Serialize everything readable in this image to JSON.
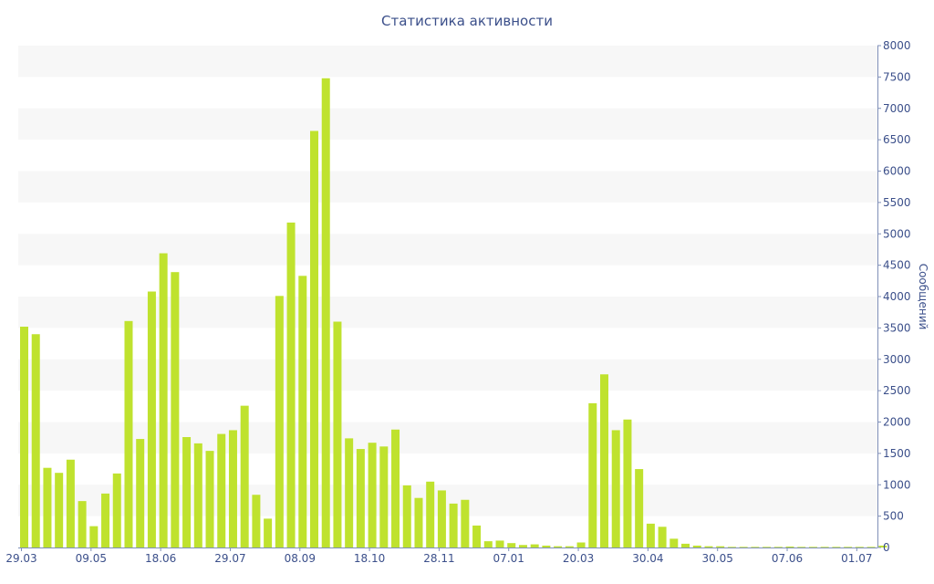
{
  "chart_data": {
    "type": "bar",
    "title": "Статистика активности",
    "xlabel": "",
    "ylabel": "Сообщений",
    "ylim": [
      0,
      8000
    ],
    "y_ticks": [
      0,
      500,
      1000,
      1500,
      2000,
      2500,
      3000,
      3500,
      4000,
      4500,
      5000,
      5500,
      6000,
      6500,
      7000,
      7500,
      8000
    ],
    "y_axis_side": "right",
    "grid": "alternating horizontal bands",
    "bar_color": "#bfe22e",
    "band_color": "#f7f7f7",
    "text_color": "#3b4f8a",
    "x_tick_labels": [
      {
        "label": "29.03",
        "index": 0
      },
      {
        "label": "09.05",
        "index": 6
      },
      {
        "label": "18.06",
        "index": 12
      },
      {
        "label": "29.07",
        "index": 18
      },
      {
        "label": "08.09",
        "index": 24
      },
      {
        "label": "18.10",
        "index": 30
      },
      {
        "label": "28.11",
        "index": 36
      },
      {
        "label": "07.01",
        "index": 42
      },
      {
        "label": "20.03",
        "index": 48
      },
      {
        "label": "30.04",
        "index": 54
      },
      {
        "label": "30.05",
        "index": 60
      },
      {
        "label": "07.06",
        "index": 66
      },
      {
        "label": "01.07",
        "index": 72
      }
    ],
    "values": [
      3520,
      3400,
      1270,
      1190,
      1400,
      740,
      340,
      860,
      1180,
      3610,
      1730,
      4080,
      4690,
      4390,
      1760,
      1660,
      1540,
      1810,
      1870,
      2260,
      840,
      460,
      4010,
      5180,
      4330,
      6640,
      7480,
      3600,
      1740,
      1570,
      1670,
      1610,
      1880,
      990,
      790,
      1050,
      910,
      700,
      760,
      350,
      100,
      110,
      70,
      40,
      50,
      30,
      20,
      20,
      80,
      2300,
      2760,
      1870,
      2040,
      1250,
      380,
      330,
      140,
      60,
      30,
      20,
      20,
      10,
      10,
      10,
      10,
      10,
      15,
      10,
      10,
      10,
      10,
      10,
      10,
      10,
      30
    ]
  }
}
